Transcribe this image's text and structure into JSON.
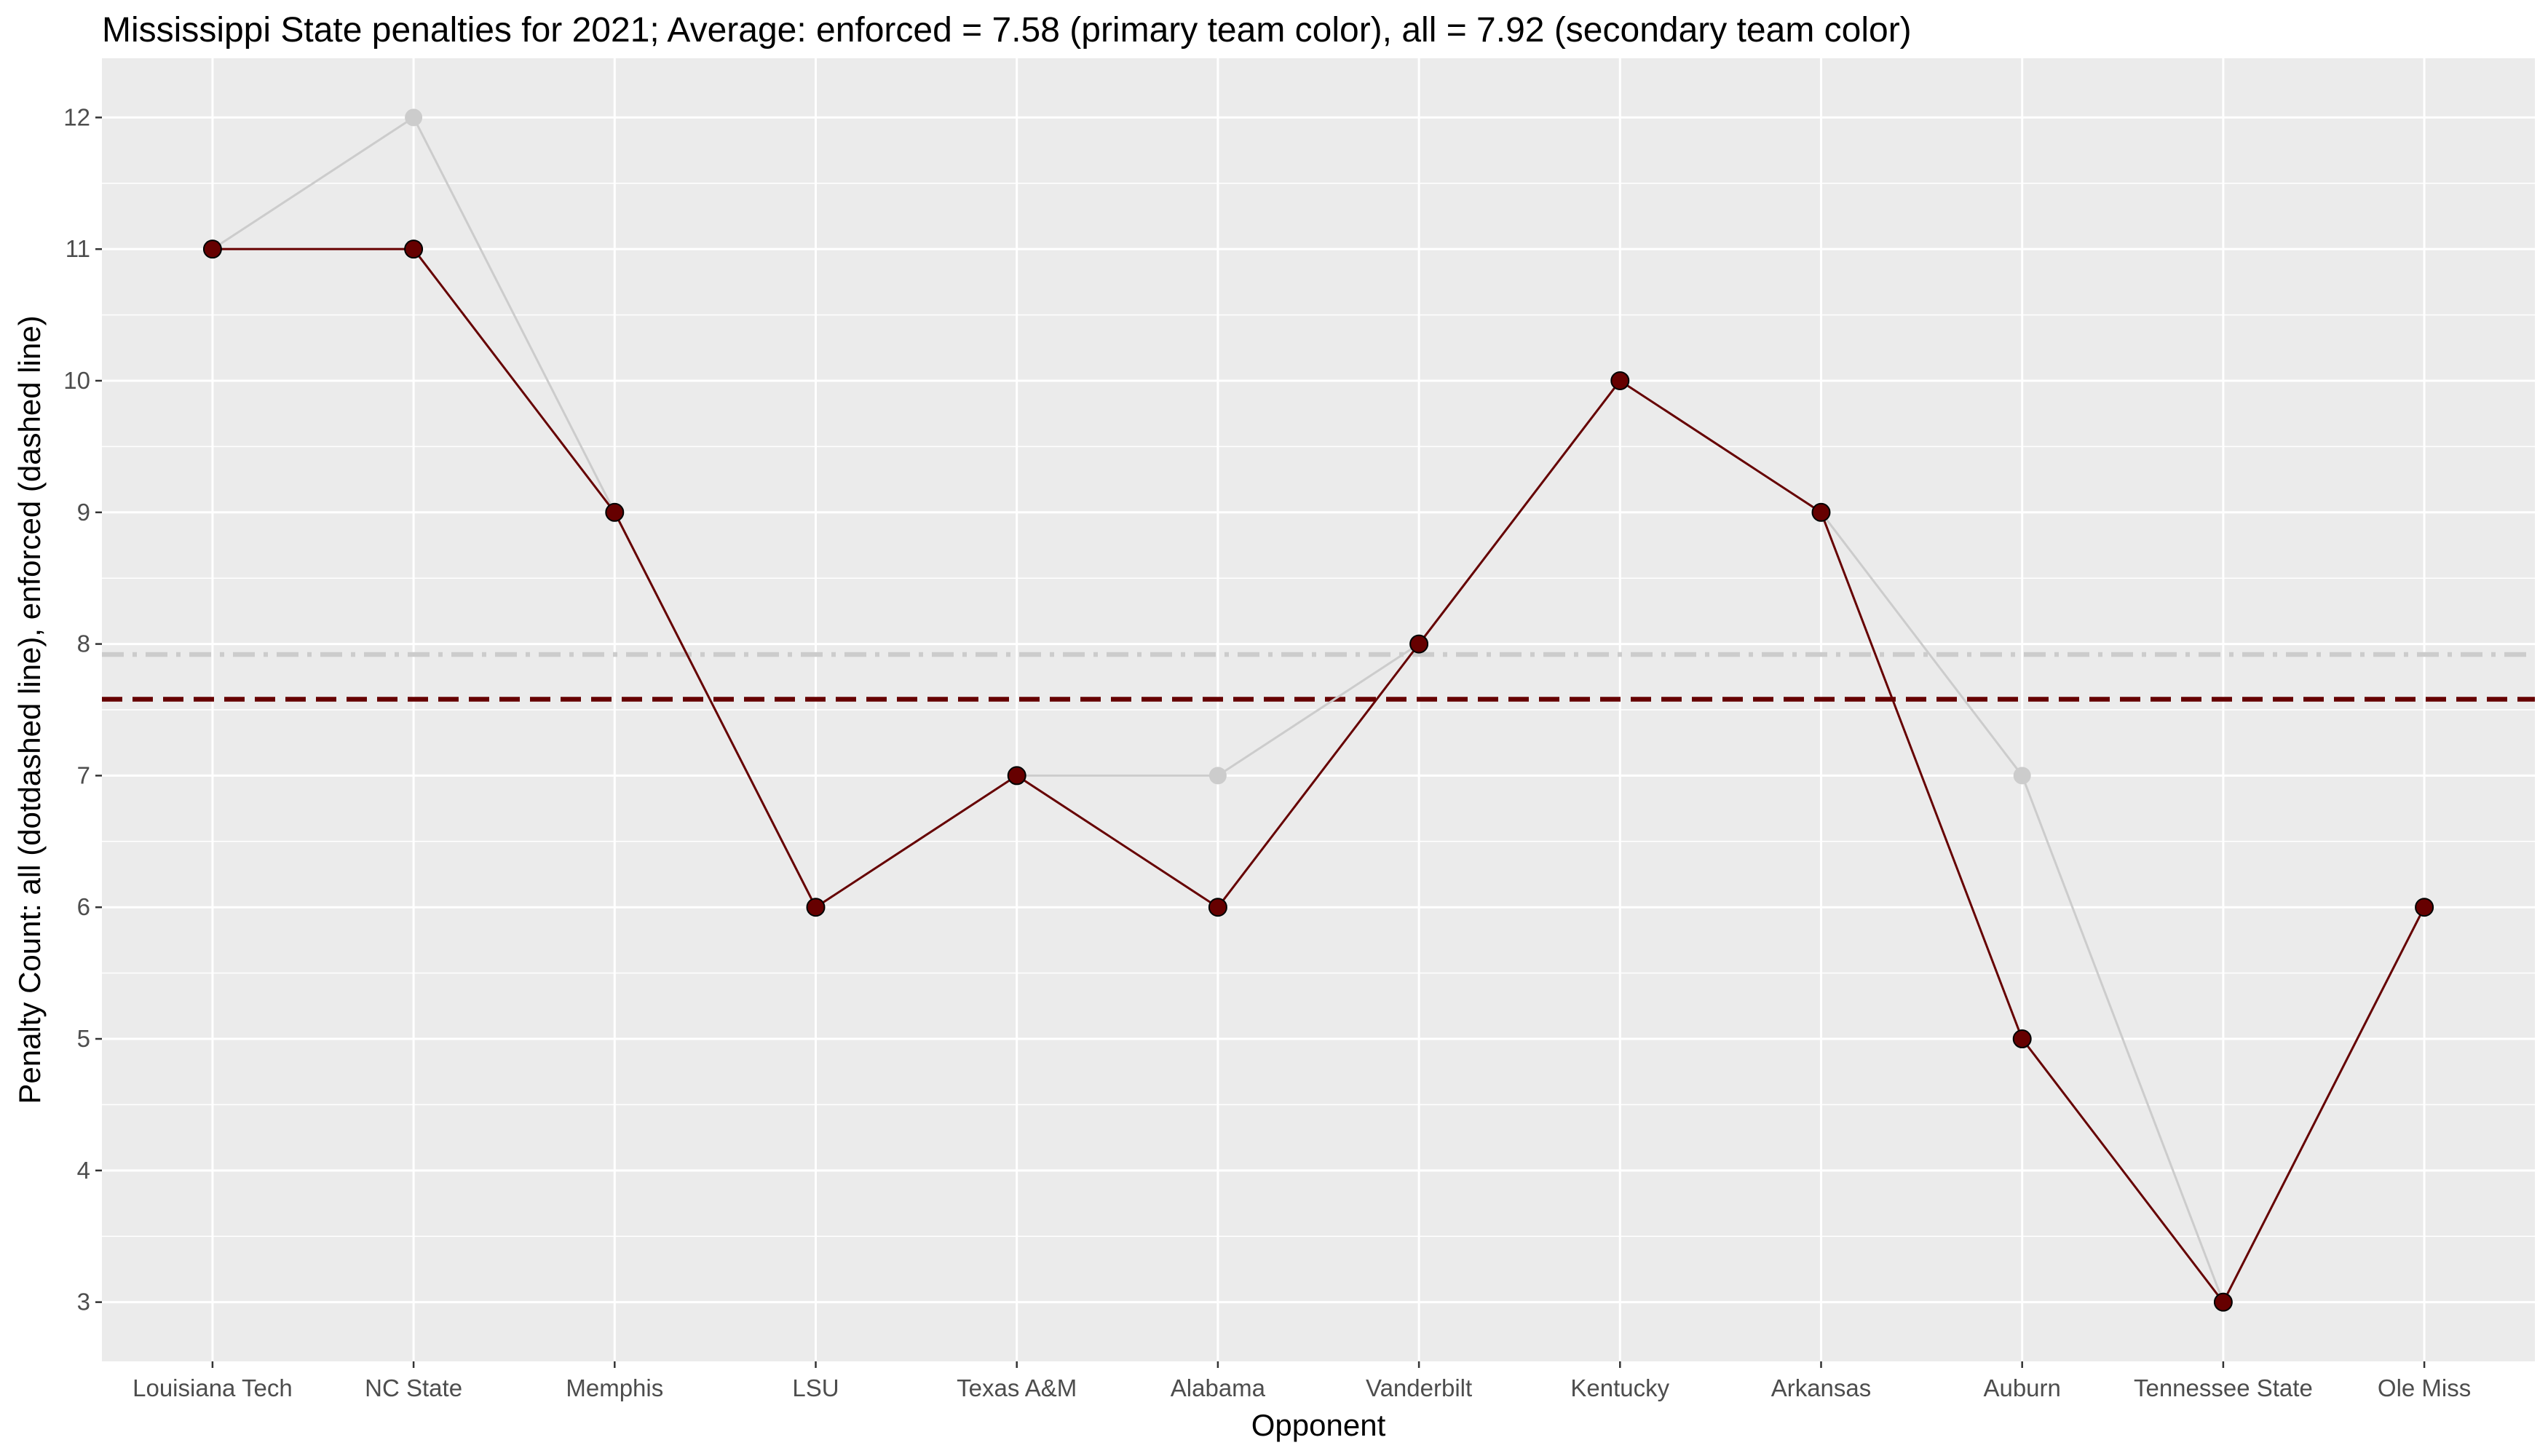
{
  "chart_data": {
    "type": "line",
    "title": "Mississippi State penalties for 2021; Average: enforced = 7.58 (primary team color), all = 7.92 (secondary team color)",
    "xlabel": "Opponent",
    "ylabel": "Penalty Count: all (dotdashed line), enforced (dashed line)",
    "categories": [
      "Louisiana Tech",
      "NC State",
      "Memphis",
      "LSU",
      "Texas A&M",
      "Alabama",
      "Vanderbilt",
      "Kentucky",
      "Arkansas",
      "Auburn",
      "Tennessee State",
      "Ole Miss"
    ],
    "series": [
      {
        "name": "all",
        "color": "#cccccc",
        "values": [
          11,
          12,
          9,
          6,
          7,
          7,
          8,
          10,
          9,
          7,
          3,
          6
        ]
      },
      {
        "name": "enforced",
        "color": "#660000",
        "values": [
          11,
          11,
          9,
          6,
          7,
          6,
          8,
          10,
          9,
          5,
          3,
          6
        ]
      }
    ],
    "reference_lines": [
      {
        "name": "all average",
        "value": 7.92,
        "style": "dotdash",
        "color": "#cccccc"
      },
      {
        "name": "enforced average",
        "value": 7.58,
        "style": "dashed",
        "color": "#660000"
      }
    ],
    "yticks": [
      3,
      4,
      5,
      6,
      7,
      8,
      9,
      10,
      11,
      12
    ],
    "ylim": [
      2.55,
      12.45
    ],
    "grid": true,
    "panel_color": "#ebebeb"
  }
}
